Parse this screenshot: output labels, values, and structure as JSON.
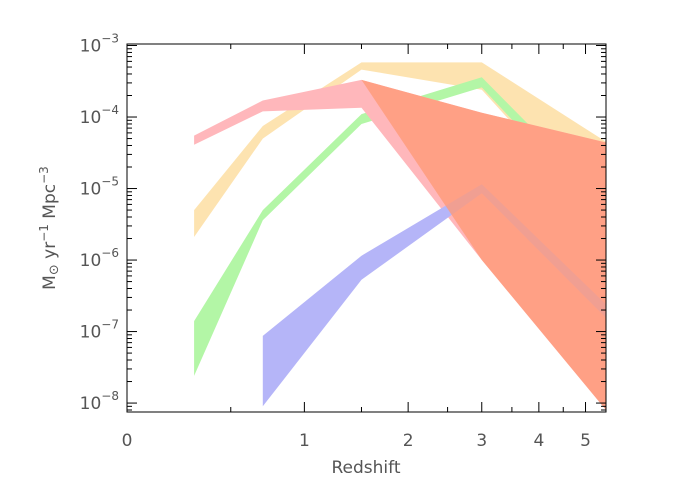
{
  "chart_data": {
    "type": "area",
    "title": "",
    "xlabel": "Redshift",
    "ylabel_parts": {
      "sun": "M",
      "yr": " yr",
      "yr_exp": "−1",
      "mpc": " Mpc",
      "mpc_exp": "−3"
    },
    "x_scale": "log(1+z)",
    "y_scale": "log",
    "xlim": [
      0,
      5.5
    ],
    "ylim": [
      7.5e-09,
      0.00105
    ],
    "x_ticks_major": [
      {
        "value": 0,
        "label": "0"
      },
      {
        "value": 1,
        "label": "1"
      },
      {
        "value": 2,
        "label": "2"
      },
      {
        "value": 3,
        "label": "3"
      },
      {
        "value": 4,
        "label": "4"
      },
      {
        "value": 5,
        "label": "5"
      }
    ],
    "x_ticks_minor": [
      0.5,
      1.5,
      2.5,
      3.5,
      4.5
    ],
    "y_ticks_major": [
      {
        "value": 1e-08,
        "base": "10",
        "exp": "−8"
      },
      {
        "value": 1e-07,
        "base": "10",
        "exp": "−7"
      },
      {
        "value": 1e-06,
        "base": "10",
        "exp": "−6"
      },
      {
        "value": 1e-05,
        "base": "10",
        "exp": "−5"
      },
      {
        "value": 0.0001,
        "base": "10",
        "exp": "−4"
      },
      {
        "value": 0.001,
        "base": "10",
        "exp": "−3"
      }
    ],
    "series": [
      {
        "color": "#fde3b0",
        "x": [
          0.3,
          0.7,
          1.5,
          3.0,
          5.5
        ],
        "upper": [
          5e-06,
          7.5e-05,
          0.00058,
          0.00058,
          4.5e-05
        ],
        "lower": [
          2.1e-06,
          5e-05,
          0.00046,
          0.00024,
          3e-06
        ]
      },
      {
        "color": "#b3f6a6",
        "x": [
          0.3,
          0.7,
          1.5,
          3.0,
          5.5
        ],
        "upper": [
          1.4e-07,
          5e-06,
          0.00011,
          0.00036,
          6.3e-06
        ],
        "lower": [
          2.4e-08,
          3.6e-06,
          8e-05,
          0.00026,
          3.6e-06
        ]
      },
      {
        "color": "#ffb7bb",
        "x": [
          0.3,
          0.7,
          1.5,
          3.0,
          5.5
        ],
        "upper": [
          5.5e-05,
          0.00017,
          0.00033,
          0.000115,
          4.4e-05
        ],
        "lower": [
          4.1e-05,
          0.00012,
          0.000135,
          1e-06,
          8e-09
        ]
      },
      {
        "color": "#b5b5f8",
        "x": [
          0.7,
          1.5,
          3.0,
          5.5
        ],
        "upper": [
          8.7e-08,
          1.15e-06,
          1.15e-05,
          2.4e-07
        ],
        "lower": [
          9e-09,
          5.3e-07,
          8.6e-06,
          1.55e-07
        ]
      }
    ],
    "overlay": {
      "color": "#ff9a78",
      "opacity": 0.8,
      "x": [
        1.5,
        3.0,
        5.5
      ],
      "upper": [
        0.00033,
        0.000115,
        4.4e-05
      ],
      "lower": [
        0.00033,
        1e-06,
        8e-09
      ]
    },
    "grid": false,
    "legend": "none"
  }
}
